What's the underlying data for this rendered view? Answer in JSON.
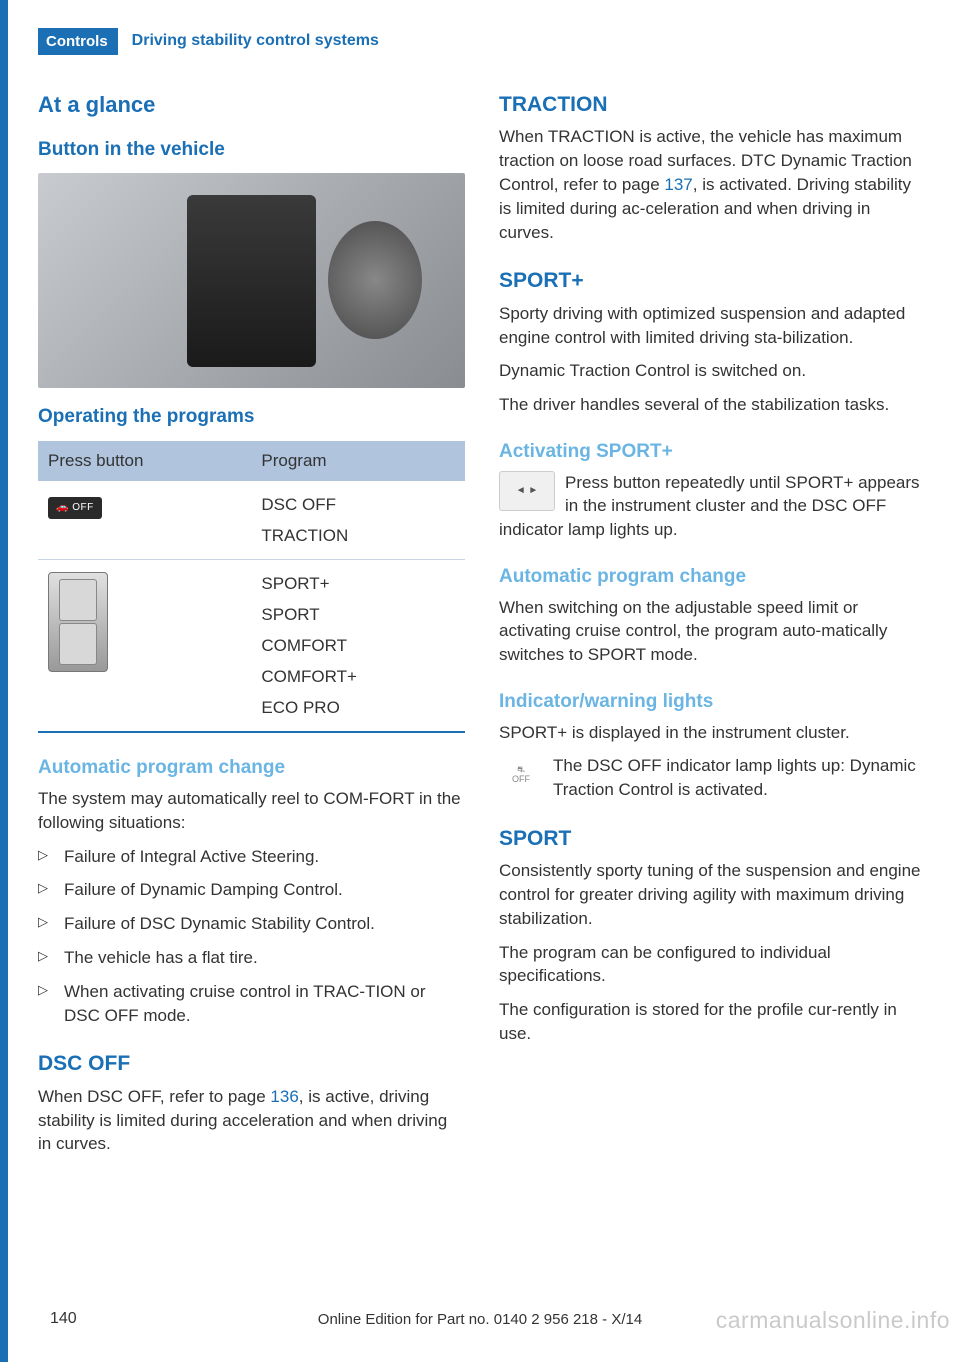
{
  "header": {
    "tab": "Controls",
    "title": "Driving stability control systems"
  },
  "left": {
    "h1": "At a glance",
    "h2_button": "Button in the vehicle",
    "h2_programs": "Operating the programs",
    "table": {
      "col1": "Press button",
      "col2": "Program",
      "row1_programs": [
        "DSC OFF",
        "TRACTION"
      ],
      "row2_programs": [
        "SPORT+",
        "SPORT",
        "COMFORT",
        "COMFORT+",
        "ECO PRO"
      ]
    },
    "auto_change": {
      "heading": "Automatic program change",
      "intro": "The system may automatically reel to COM‐FORT in the following situations:",
      "items": [
        "Failure of Integral Active Steering.",
        "Failure of Dynamic Damping Control.",
        "Failure of DSC Dynamic Stability Control.",
        "The vehicle has a flat tire.",
        "When activating cruise control in TRAC‐TION or DSC OFF mode."
      ]
    },
    "dsc_off": {
      "heading": "DSC OFF",
      "text_a": "When DSC OFF, refer to page ",
      "page": "136",
      "text_b": ", is active, driving stability is limited during acceleration and when driving in curves."
    }
  },
  "right": {
    "traction": {
      "heading": "TRACTION",
      "text_a": "When TRACTION is active, the vehicle has maximum traction on loose road surfaces. DTC Dynamic Traction Control, refer to page ",
      "page": "137",
      "text_b": ", is activated. Driving stability is limited during ac‐celeration and when driving in curves."
    },
    "sportplus": {
      "heading": "SPORT+",
      "p1": "Sporty driving with optimized suspension and adapted engine control with limited driving sta‐bilization.",
      "p2": "Dynamic Traction Control is switched on.",
      "p3": "The driver handles several of the stabilization tasks."
    },
    "activating": {
      "heading": "Activating SPORT+",
      "text": "Press button repeatedly until SPORT+ appears in the instrument cluster and the DSC OFF indicator lamp lights up."
    },
    "auto_change": {
      "heading": "Automatic program change",
      "text": "When switching on the adjustable speed limit or activating cruise control, the program auto‐matically switches to SPORT mode."
    },
    "indicator": {
      "heading": "Indicator/warning lights",
      "p1": "SPORT+ is displayed in the instrument cluster.",
      "p2": "The DSC OFF indicator lamp lights up: Dynamic Traction Control is activated."
    },
    "sport": {
      "heading": "SPORT",
      "p1": "Consistently sporty tuning of the suspension and engine control for greater driving agility with maximum driving stabilization.",
      "p2": "The program can be configured to individual specifications.",
      "p3": "The configuration is stored for the profile cur‐rently in use."
    }
  },
  "footer": {
    "page": "140",
    "edition": "Online Edition for Part no. 0140 2 956 218 - X/14",
    "watermark": "carmanualsonline.info"
  }
}
